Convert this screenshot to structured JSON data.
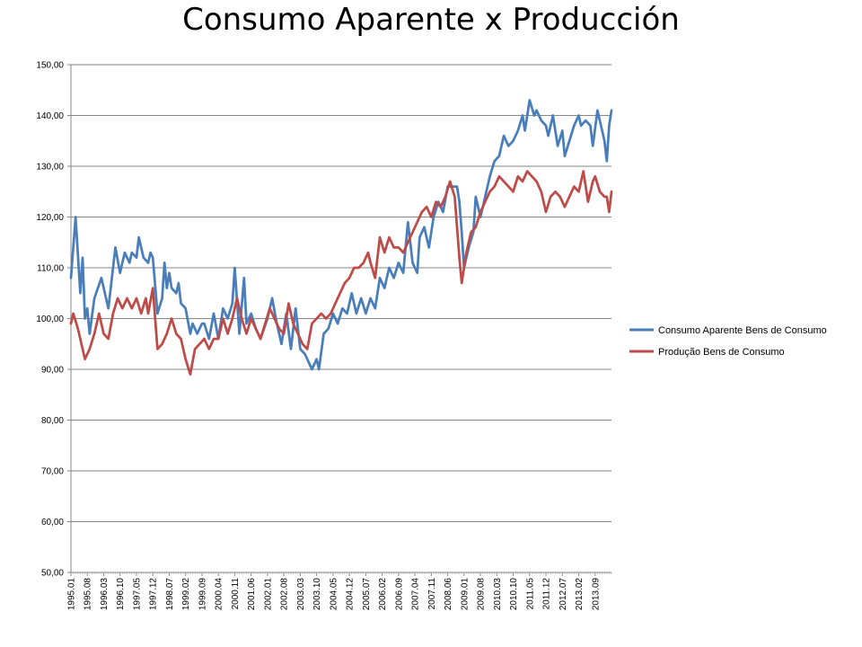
{
  "chart_data": {
    "type": "line",
    "title": "Consumo Aparente x Producción",
    "xlabel": "",
    "ylabel": "",
    "ylim": [
      50,
      150
    ],
    "yticks": [
      "50,00",
      "60,00",
      "70,00",
      "80,00",
      "90,00",
      "100,00",
      "110,00",
      "120,00",
      "130,00",
      "140,00",
      "150,00"
    ],
    "x_tick_labels": [
      "1995.01",
      "1995.08",
      "1996.03",
      "1996.10",
      "1997.05",
      "1997.12",
      "1998.07",
      "1999.02",
      "1999.09",
      "2000.04",
      "2000.11",
      "2001.06",
      "2002.01",
      "2002.08",
      "2003.03",
      "2003.10",
      "2004.05",
      "2004.12",
      "2005.07",
      "2006.02",
      "2006.09",
      "2007.04",
      "2007.11",
      "2008.06",
      "2009.01",
      "2009.08",
      "2010.03",
      "2010.10",
      "2011.05",
      "2011.12",
      "2012.07",
      "2013.02",
      "2013.09"
    ],
    "x_start": "1995-01",
    "x_end": "2014-02",
    "grid": true,
    "legend_position": "right",
    "series": [
      {
        "name": "Consumo Aparente Bens de Consumo",
        "color": "#4a7ebb",
        "points": [
          [
            "1995-01",
            108
          ],
          [
            "1995-03",
            120
          ],
          [
            "1995-05",
            105
          ],
          [
            "1995-06",
            112
          ],
          [
            "1995-07",
            100
          ],
          [
            "1995-08",
            102
          ],
          [
            "1995-09",
            97
          ],
          [
            "1995-11",
            104
          ],
          [
            "1996-02",
            108
          ],
          [
            "1996-05",
            102
          ],
          [
            "1996-06",
            106
          ],
          [
            "1996-08",
            114
          ],
          [
            "1996-10",
            109
          ],
          [
            "1996-12",
            113
          ],
          [
            "1997-02",
            111
          ],
          [
            "1997-03",
            113
          ],
          [
            "1997-05",
            112
          ],
          [
            "1997-06",
            116
          ],
          [
            "1997-08",
            112
          ],
          [
            "1997-10",
            111
          ],
          [
            "1997-11",
            113
          ],
          [
            "1997-12",
            112
          ],
          [
            "1998-02",
            101
          ],
          [
            "1998-04",
            104
          ],
          [
            "1998-05",
            111
          ],
          [
            "1998-06",
            106
          ],
          [
            "1998-07",
            109
          ],
          [
            "1998-08",
            106
          ],
          [
            "1998-10",
            105
          ],
          [
            "1998-11",
            107
          ],
          [
            "1998-12",
            103
          ],
          [
            "1999-02",
            102
          ],
          [
            "1999-04",
            97
          ],
          [
            "1999-05",
            99
          ],
          [
            "1999-07",
            97
          ],
          [
            "1999-09",
            99
          ],
          [
            "1999-10",
            99
          ],
          [
            "1999-12",
            96
          ],
          [
            "2000-02",
            101
          ],
          [
            "2000-04",
            96
          ],
          [
            "2000-06",
            102
          ],
          [
            "2000-08",
            100
          ],
          [
            "2000-10",
            103
          ],
          [
            "2000-11",
            110
          ],
          [
            "2001-01",
            97
          ],
          [
            "2001-03",
            108
          ],
          [
            "2001-04",
            99
          ],
          [
            "2001-06",
            101
          ],
          [
            "2001-08",
            98
          ],
          [
            "2001-10",
            96
          ],
          [
            "2002-01",
            100
          ],
          [
            "2002-03",
            104
          ],
          [
            "2002-05",
            99
          ],
          [
            "2002-07",
            95
          ],
          [
            "2002-09",
            101
          ],
          [
            "2002-11",
            94
          ],
          [
            "2003-01",
            102
          ],
          [
            "2003-03",
            94
          ],
          [
            "2003-05",
            93
          ],
          [
            "2003-06",
            92
          ],
          [
            "2003-08",
            90
          ],
          [
            "2003-10",
            92
          ],
          [
            "2003-11",
            90
          ],
          [
            "2004-01",
            97
          ],
          [
            "2004-03",
            98
          ],
          [
            "2004-05",
            101
          ],
          [
            "2004-07",
            99
          ],
          [
            "2004-09",
            102
          ],
          [
            "2004-11",
            101
          ],
          [
            "2005-01",
            105
          ],
          [
            "2005-03",
            101
          ],
          [
            "2005-05",
            104
          ],
          [
            "2005-07",
            101
          ],
          [
            "2005-09",
            104
          ],
          [
            "2005-11",
            102
          ],
          [
            "2006-01",
            108
          ],
          [
            "2006-03",
            106
          ],
          [
            "2006-05",
            110
          ],
          [
            "2006-07",
            108
          ],
          [
            "2006-09",
            111
          ],
          [
            "2006-11",
            109
          ],
          [
            "2007-01",
            119
          ],
          [
            "2007-03",
            111
          ],
          [
            "2007-05",
            109
          ],
          [
            "2007-06",
            116
          ],
          [
            "2007-08",
            118
          ],
          [
            "2007-10",
            114
          ],
          [
            "2007-12",
            120
          ],
          [
            "2008-02",
            123
          ],
          [
            "2008-04",
            121
          ],
          [
            "2008-06",
            126
          ],
          [
            "2008-08",
            126
          ],
          [
            "2008-10",
            126
          ],
          [
            "2008-11",
            123
          ],
          [
            "2008-12",
            117
          ],
          [
            "2009-01",
            110
          ],
          [
            "2009-03",
            114
          ],
          [
            "2009-05",
            117
          ],
          [
            "2009-06",
            124
          ],
          [
            "2009-08",
            120
          ],
          [
            "2009-10",
            124
          ],
          [
            "2009-12",
            128
          ],
          [
            "2010-02",
            131
          ],
          [
            "2010-04",
            132
          ],
          [
            "2010-06",
            136
          ],
          [
            "2010-08",
            134
          ],
          [
            "2010-10",
            135
          ],
          [
            "2010-12",
            137
          ],
          [
            "2011-02",
            140
          ],
          [
            "2011-03",
            137
          ],
          [
            "2011-05",
            143
          ],
          [
            "2011-07",
            140
          ],
          [
            "2011-08",
            141
          ],
          [
            "2011-10",
            139
          ],
          [
            "2011-12",
            138
          ],
          [
            "2012-01",
            136
          ],
          [
            "2012-03",
            140
          ],
          [
            "2012-05",
            134
          ],
          [
            "2012-07",
            137
          ],
          [
            "2012-08",
            132
          ],
          [
            "2012-10",
            135
          ],
          [
            "2012-12",
            138
          ],
          [
            "2013-02",
            140
          ],
          [
            "2013-03",
            138
          ],
          [
            "2013-05",
            139
          ],
          [
            "2013-07",
            138
          ],
          [
            "2013-08",
            134
          ],
          [
            "2013-10",
            141
          ],
          [
            "2013-11",
            139
          ],
          [
            "2013-12",
            137
          ],
          [
            "2014-01",
            135
          ],
          [
            "2014-02",
            131
          ],
          [
            "2014-03",
            138
          ],
          [
            "2014-04",
            141
          ]
        ]
      },
      {
        "name": "Produção Bens de Consumo",
        "color": "#be4b48",
        "points": [
          [
            "1995-01",
            99
          ],
          [
            "1995-02",
            101
          ],
          [
            "1995-04",
            98
          ],
          [
            "1995-06",
            94
          ],
          [
            "1995-07",
            92
          ],
          [
            "1995-09",
            94
          ],
          [
            "1995-11",
            97
          ],
          [
            "1996-01",
            101
          ],
          [
            "1996-03",
            97
          ],
          [
            "1996-05",
            96
          ],
          [
            "1996-07",
            101
          ],
          [
            "1996-09",
            104
          ],
          [
            "1996-11",
            102
          ],
          [
            "1997-01",
            104
          ],
          [
            "1997-03",
            102
          ],
          [
            "1997-05",
            104
          ],
          [
            "1997-07",
            101
          ],
          [
            "1997-09",
            104
          ],
          [
            "1997-10",
            101
          ],
          [
            "1997-12",
            106
          ],
          [
            "1998-02",
            94
          ],
          [
            "1998-04",
            95
          ],
          [
            "1998-06",
            97
          ],
          [
            "1998-08",
            100
          ],
          [
            "1998-10",
            97
          ],
          [
            "1998-12",
            96
          ],
          [
            "1999-02",
            92
          ],
          [
            "1999-04",
            89
          ],
          [
            "1999-06",
            94
          ],
          [
            "1999-08",
            95
          ],
          [
            "1999-10",
            96
          ],
          [
            "1999-12",
            94
          ],
          [
            "2000-02",
            96
          ],
          [
            "2000-04",
            96
          ],
          [
            "2000-06",
            100
          ],
          [
            "2000-08",
            97
          ],
          [
            "2000-10",
            100
          ],
          [
            "2000-12",
            104
          ],
          [
            "2001-02",
            100
          ],
          [
            "2001-04",
            97
          ],
          [
            "2001-06",
            100
          ],
          [
            "2001-08",
            98
          ],
          [
            "2001-10",
            96
          ],
          [
            "2001-12",
            99
          ],
          [
            "2002-02",
            102
          ],
          [
            "2002-04",
            100
          ],
          [
            "2002-06",
            98
          ],
          [
            "2002-08",
            97
          ],
          [
            "2002-10",
            103
          ],
          [
            "2002-12",
            99
          ],
          [
            "2003-02",
            97
          ],
          [
            "2003-04",
            95
          ],
          [
            "2003-06",
            94
          ],
          [
            "2003-08",
            99
          ],
          [
            "2003-10",
            100
          ],
          [
            "2003-12",
            101
          ],
          [
            "2004-02",
            100
          ],
          [
            "2004-04",
            101
          ],
          [
            "2004-06",
            103
          ],
          [
            "2004-08",
            105
          ],
          [
            "2004-10",
            107
          ],
          [
            "2004-12",
            108
          ],
          [
            "2005-02",
            110
          ],
          [
            "2005-04",
            110
          ],
          [
            "2005-06",
            111
          ],
          [
            "2005-08",
            113
          ],
          [
            "2005-09",
            111
          ],
          [
            "2005-11",
            108
          ],
          [
            "2006-01",
            116
          ],
          [
            "2006-03",
            113
          ],
          [
            "2006-05",
            116
          ],
          [
            "2006-07",
            114
          ],
          [
            "2006-09",
            114
          ],
          [
            "2006-11",
            113
          ],
          [
            "2007-01",
            115
          ],
          [
            "2007-03",
            117
          ],
          [
            "2007-05",
            119
          ],
          [
            "2007-07",
            121
          ],
          [
            "2007-09",
            122
          ],
          [
            "2007-11",
            120
          ],
          [
            "2008-01",
            123
          ],
          [
            "2008-03",
            122
          ],
          [
            "2008-05",
            124
          ],
          [
            "2008-07",
            127
          ],
          [
            "2008-09",
            124
          ],
          [
            "2008-10",
            118
          ],
          [
            "2008-11",
            112
          ],
          [
            "2008-12",
            107
          ],
          [
            "2009-02",
            113
          ],
          [
            "2009-04",
            117
          ],
          [
            "2009-06",
            118
          ],
          [
            "2009-08",
            121
          ],
          [
            "2009-10",
            123
          ],
          [
            "2009-12",
            125
          ],
          [
            "2010-02",
            126
          ],
          [
            "2010-04",
            128
          ],
          [
            "2010-06",
            127
          ],
          [
            "2010-08",
            126
          ],
          [
            "2010-10",
            125
          ],
          [
            "2010-12",
            128
          ],
          [
            "2011-02",
            127
          ],
          [
            "2011-04",
            129
          ],
          [
            "2011-06",
            128
          ],
          [
            "2011-08",
            127
          ],
          [
            "2011-10",
            125
          ],
          [
            "2011-12",
            121
          ],
          [
            "2012-02",
            124
          ],
          [
            "2012-04",
            125
          ],
          [
            "2012-06",
            124
          ],
          [
            "2012-08",
            122
          ],
          [
            "2012-10",
            124
          ],
          [
            "2012-12",
            126
          ],
          [
            "2013-02",
            125
          ],
          [
            "2013-04",
            129
          ],
          [
            "2013-06",
            123
          ],
          [
            "2013-08",
            127
          ],
          [
            "2013-09",
            128
          ],
          [
            "2013-11",
            125
          ],
          [
            "2014-01",
            124
          ],
          [
            "2014-02",
            124
          ],
          [
            "2014-03",
            121
          ],
          [
            "2014-04",
            125
          ]
        ]
      }
    ]
  }
}
